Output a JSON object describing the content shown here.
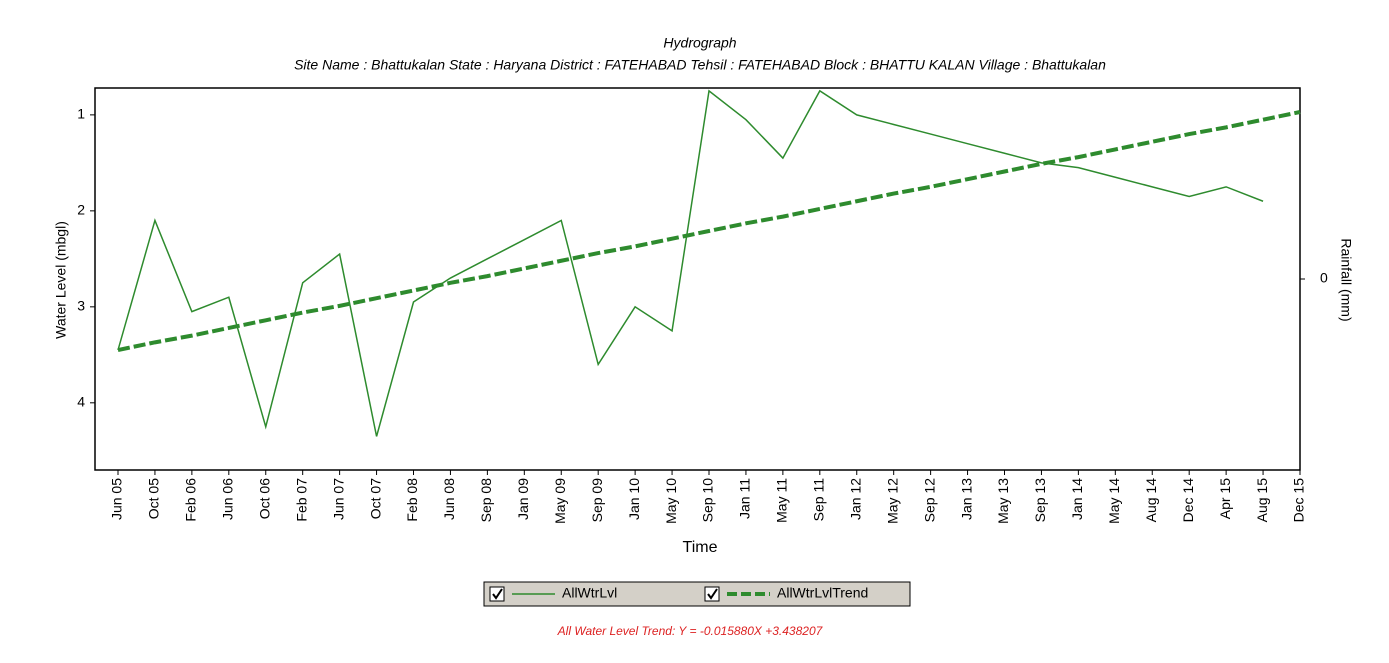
{
  "chart_data": {
    "type": "line",
    "title": "Hydrograph",
    "subtitle": "Site Name : Bhattukalan  State : Haryana District : FATEHABAD  Tehsil : FATEHABAD  Block : BHATTU KALAN Village : Bhattukalan",
    "y_label": "Water Level (mbgl)",
    "x_label": "Time",
    "y2_label": "Rainfall (mm)",
    "annotation": "All Water Level Trend: Y = -0.015880X +3.438207",
    "categories": [
      "Jun 05",
      "Oct 05",
      "Feb 06",
      "Jun 06",
      "Oct 06",
      "Feb 07",
      "Jun 07",
      "Oct 07",
      "Feb 08",
      "Jun 08",
      "Sep 08",
      "Jan 09",
      "May 09",
      "Sep 09",
      "Jan 10",
      "May 10",
      "Sep 10",
      "Jan 11",
      "May 11",
      "Sep 11",
      "Jan 12",
      "May 12",
      "Sep 12",
      "Jan 13",
      "May 13",
      "Sep 13",
      "Jan 14",
      "May 14",
      "Aug 14",
      "Dec 14",
      "Apr 15",
      "Aug 15",
      "Dec 15"
    ],
    "series": [
      {
        "name": "AllWtrLvl",
        "color": "#2e8b2e",
        "style": "solid",
        "values": [
          3.45,
          2.1,
          3.05,
          2.9,
          4.25,
          2.75,
          2.45,
          4.35,
          2.95,
          2.7,
          2.5,
          2.3,
          2.1,
          3.6,
          3.0,
          3.25,
          0.75,
          1.05,
          1.45,
          0.75,
          1.0,
          1.1,
          1.2,
          1.3,
          1.4,
          1.5,
          1.55,
          1.65,
          1.75,
          1.85,
          1.75,
          1.9,
          null
        ]
      },
      {
        "name": "AllWtrLvlTrend",
        "color": "#2e8b2e",
        "style": "dashed",
        "values": [
          3.45,
          3.37,
          3.3,
          3.22,
          3.14,
          3.06,
          2.99,
          2.91,
          2.83,
          2.75,
          2.68,
          2.6,
          2.52,
          2.44,
          2.37,
          2.29,
          2.21,
          2.13,
          2.06,
          1.98,
          1.9,
          1.82,
          1.75,
          1.67,
          1.59,
          1.51,
          1.44,
          1.36,
          1.28,
          1.2,
          1.13,
          1.05,
          0.97
        ]
      }
    ],
    "ylim": [
      0.72,
      4.7
    ],
    "y_inverted": true,
    "yticks": [
      1,
      2,
      3,
      4
    ],
    "y2lim": [
      -1,
      1
    ],
    "y2ticks": [
      0
    ],
    "grid": false
  }
}
